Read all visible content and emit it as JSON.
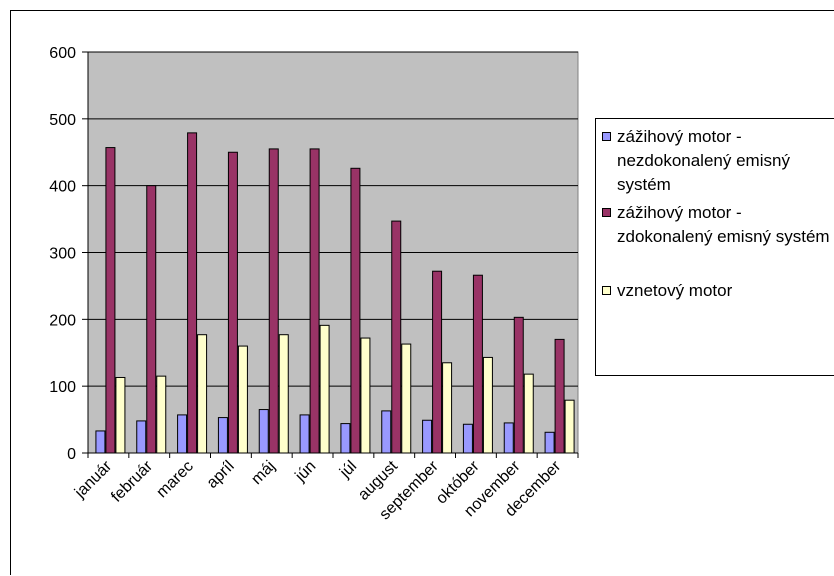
{
  "chart_data": {
    "type": "bar",
    "categories": [
      "január",
      "február",
      "marec",
      "apríl",
      "máj",
      "jún",
      "júl",
      "august",
      "september",
      "október",
      "november",
      "december"
    ],
    "series": [
      {
        "name": "zážihový motor - nezdokonalený emisný systém",
        "color": "#9999ff",
        "values": [
          33,
          48,
          57,
          53,
          65,
          57,
          44,
          63,
          49,
          43,
          45,
          31
        ]
      },
      {
        "name": "zážihový motor - zdokonalený emisný systém",
        "color": "#993366",
        "values": [
          457,
          400,
          479,
          450,
          455,
          455,
          426,
          347,
          272,
          266,
          203,
          170
        ]
      },
      {
        "name": "vznetový motor",
        "color": "#ffffcc",
        "values": [
          113,
          115,
          177,
          160,
          177,
          191,
          172,
          163,
          135,
          143,
          118,
          79
        ]
      }
    ],
    "ylim": [
      0,
      600
    ],
    "yticks": [
      0,
      100,
      200,
      300,
      400,
      500,
      600
    ],
    "xlabel": "",
    "ylabel": "",
    "grid": true,
    "plot_background": "#c0c0c0",
    "legend_position": "right"
  }
}
